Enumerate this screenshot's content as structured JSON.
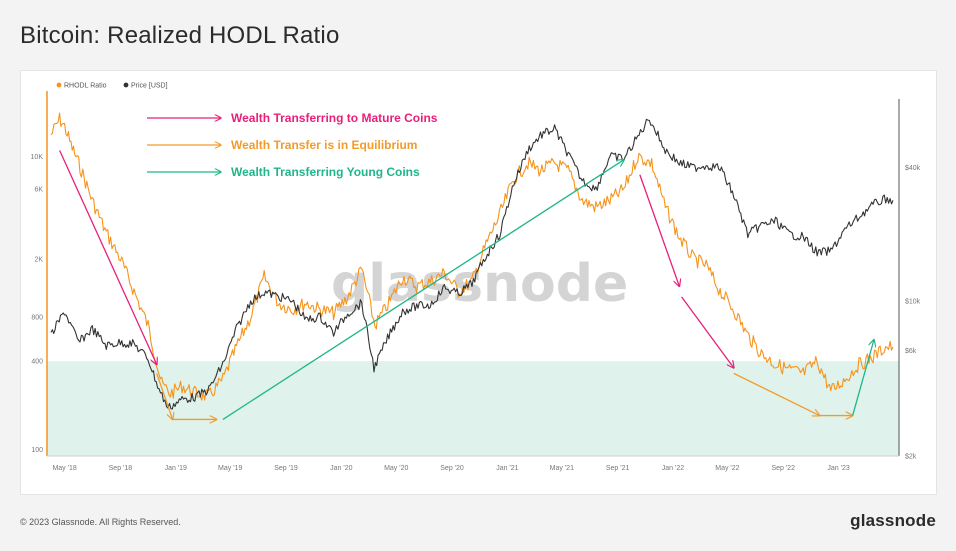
{
  "page": {
    "title": "Bitcoin: Realized HODL Ratio",
    "copyright": "© 2023 Glassnode. All Rights Reserved.",
    "brand": "glassnode",
    "watermark": "glassnode"
  },
  "chart_data": {
    "type": "line",
    "title": "",
    "xlabel": "",
    "ylabel_left": "",
    "ylabel_right": "",
    "x_ticks": [
      "May '18",
      "Sep '18",
      "Jan '19",
      "May '19",
      "Sep '19",
      "Jan '20",
      "May '20",
      "Sep '20",
      "Jan '21",
      "May '21",
      "Sep '21",
      "Jan '22",
      "May '22",
      "Sep '22",
      "Jan '23"
    ],
    "y_left_ticks": [
      "100",
      "400",
      "800",
      "2K",
      "6K",
      "10K"
    ],
    "y_left_scale": "log",
    "y_right_ticks": [
      "$2k",
      "$6k",
      "$10k",
      "$40k"
    ],
    "y_right_scale": "log",
    "legend": {
      "position": "top-left",
      "entries": [
        {
          "label": "RHODL Ratio",
          "color": "#f7931a"
        },
        {
          "label": "Price [USD]",
          "color": "#333333"
        }
      ]
    },
    "grid": false,
    "shaded_band": {
      "axis": "left",
      "from": 100,
      "to": 400,
      "color": "#dff3ec"
    },
    "series": [
      {
        "name": "RHODL Ratio",
        "color": "#f7931a",
        "axis": "left",
        "points": [
          [
            "2018-04-01",
            14000
          ],
          [
            "2018-04-20",
            18000
          ],
          [
            "2018-05-01",
            16000
          ],
          [
            "2018-05-15",
            12000
          ],
          [
            "2018-06-01",
            9000
          ],
          [
            "2018-07-01",
            5000
          ],
          [
            "2018-08-01",
            3000
          ],
          [
            "2018-09-01",
            2000
          ],
          [
            "2018-10-01",
            1200
          ],
          [
            "2018-11-01",
            700
          ],
          [
            "2018-12-01",
            280
          ],
          [
            "2018-12-20",
            240
          ],
          [
            "2019-01-15",
            270
          ],
          [
            "2019-02-15",
            240
          ],
          [
            "2019-03-15",
            230
          ],
          [
            "2019-04-15",
            300
          ],
          [
            "2019-05-15",
            500
          ],
          [
            "2019-06-15",
            800
          ],
          [
            "2019-07-15",
            1500
          ],
          [
            "2019-08-15",
            1000
          ],
          [
            "2019-09-15",
            900
          ],
          [
            "2019-10-15",
            1000
          ],
          [
            "2019-11-15",
            900
          ],
          [
            "2019-12-15",
            850
          ],
          [
            "2020-01-15",
            1100
          ],
          [
            "2020-02-15",
            1700
          ],
          [
            "2020-03-15",
            700
          ],
          [
            "2020-04-15",
            1000
          ],
          [
            "2020-05-15",
            1500
          ],
          [
            "2020-06-15",
            1300
          ],
          [
            "2020-07-15",
            1400
          ],
          [
            "2020-08-15",
            1600
          ],
          [
            "2020-09-15",
            1200
          ],
          [
            "2020-10-15",
            1400
          ],
          [
            "2020-11-15",
            2500
          ],
          [
            "2020-12-15",
            4000
          ],
          [
            "2021-01-15",
            7000
          ],
          [
            "2021-02-15",
            9000
          ],
          [
            "2021-03-15",
            8000
          ],
          [
            "2021-04-15",
            9000
          ],
          [
            "2021-05-15",
            8000
          ],
          [
            "2021-06-15",
            5000
          ],
          [
            "2021-07-15",
            4500
          ],
          [
            "2021-08-15",
            5000
          ],
          [
            "2021-09-15",
            6000
          ],
          [
            "2021-10-15",
            10000
          ],
          [
            "2021-11-15",
            9000
          ],
          [
            "2021-12-15",
            4500
          ],
          [
            "2022-01-15",
            2800
          ],
          [
            "2022-02-15",
            2000
          ],
          [
            "2022-03-15",
            1800
          ],
          [
            "2022-04-15",
            1200
          ],
          [
            "2022-05-15",
            900
          ],
          [
            "2022-06-15",
            600
          ],
          [
            "2022-07-15",
            450
          ],
          [
            "2022-08-15",
            380
          ],
          [
            "2022-09-15",
            350
          ],
          [
            "2022-10-15",
            330
          ],
          [
            "2022-11-15",
            400
          ],
          [
            "2022-12-15",
            250
          ],
          [
            "2023-01-15",
            300
          ],
          [
            "2023-02-15",
            380
          ],
          [
            "2023-03-15",
            420
          ],
          [
            "2023-04-15",
            500
          ],
          [
            "2023-05-01",
            500
          ]
        ]
      },
      {
        "name": "Price [USD]",
        "color": "#333333",
        "axis": "right",
        "points": [
          [
            "2018-04-01",
            7000
          ],
          [
            "2018-05-01",
            9000
          ],
          [
            "2018-06-01",
            6500
          ],
          [
            "2018-07-01",
            7500
          ],
          [
            "2018-08-01",
            6300
          ],
          [
            "2018-09-01",
            6500
          ],
          [
            "2018-10-01",
            6400
          ],
          [
            "2018-11-01",
            5500
          ],
          [
            "2018-11-25",
            4000
          ],
          [
            "2018-12-15",
            3300
          ],
          [
            "2019-01-15",
            3600
          ],
          [
            "2019-02-15",
            3700
          ],
          [
            "2019-03-15",
            4000
          ],
          [
            "2019-04-15",
            5200
          ],
          [
            "2019-05-15",
            7500
          ],
          [
            "2019-06-15",
            10000
          ],
          [
            "2019-07-15",
            11000
          ],
          [
            "2019-08-15",
            10500
          ],
          [
            "2019-09-15",
            10000
          ],
          [
            "2019-10-15",
            8200
          ],
          [
            "2019-11-15",
            8500
          ],
          [
            "2019-12-15",
            7200
          ],
          [
            "2020-01-15",
            8800
          ],
          [
            "2020-02-15",
            9800
          ],
          [
            "2020-03-13",
            5000
          ],
          [
            "2020-04-15",
            7000
          ],
          [
            "2020-05-15",
            9000
          ],
          [
            "2020-06-15",
            9500
          ],
          [
            "2020-07-15",
            9600
          ],
          [
            "2020-08-15",
            11500
          ],
          [
            "2020-09-15",
            10800
          ],
          [
            "2020-10-15",
            12000
          ],
          [
            "2020-11-15",
            16000
          ],
          [
            "2020-12-15",
            20000
          ],
          [
            "2021-01-15",
            34000
          ],
          [
            "2021-02-15",
            48000
          ],
          [
            "2021-03-15",
            56000
          ],
          [
            "2021-04-15",
            60000
          ],
          [
            "2021-05-15",
            46000
          ],
          [
            "2021-06-15",
            35000
          ],
          [
            "2021-07-15",
            32000
          ],
          [
            "2021-08-15",
            45000
          ],
          [
            "2021-09-15",
            44000
          ],
          [
            "2021-10-15",
            55000
          ],
          [
            "2021-11-10",
            67000
          ],
          [
            "2021-12-15",
            48000
          ],
          [
            "2022-01-15",
            42000
          ],
          [
            "2022-02-15",
            40000
          ],
          [
            "2022-03-15",
            41000
          ],
          [
            "2022-04-15",
            40000
          ],
          [
            "2022-05-15",
            30000
          ],
          [
            "2022-06-15",
            20000
          ],
          [
            "2022-07-15",
            22000
          ],
          [
            "2022-08-15",
            23000
          ],
          [
            "2022-09-15",
            20000
          ],
          [
            "2022-10-15",
            19500
          ],
          [
            "2022-11-15",
            16500
          ],
          [
            "2022-12-15",
            16800
          ],
          [
            "2023-01-15",
            21000
          ],
          [
            "2023-02-15",
            24000
          ],
          [
            "2023-03-15",
            27000
          ],
          [
            "2023-04-15",
            29000
          ],
          [
            "2023-05-01",
            28500
          ]
        ]
      }
    ],
    "annotations": [
      {
        "text": "Wealth Transferring to Mature Coins",
        "color": "#e8207a",
        "kind": "legend"
      },
      {
        "text": "Wealth Transfer is in Equilibrium",
        "color": "#f39b2a",
        "kind": "legend"
      },
      {
        "text": "Wealth Transferring Young Coins",
        "color": "#1fb68a",
        "kind": "legend"
      }
    ],
    "trend_arrows": [
      {
        "color": "#e8207a",
        "from": [
          "2018-04-20",
          11000
        ],
        "to": [
          "2018-11-20",
          380
        ],
        "axis": "left"
      },
      {
        "color": "#f39b2a",
        "from": [
          "2018-11-20",
          330
        ],
        "to": [
          "2018-12-25",
          160
        ],
        "axis": "left"
      },
      {
        "color": "#f39b2a",
        "from": [
          "2018-12-25",
          160
        ],
        "to": [
          "2019-04-01",
          160
        ],
        "axis": "left"
      },
      {
        "color": "#1fb68a",
        "from": [
          "2019-04-15",
          160
        ],
        "to": [
          "2021-09-15",
          9500
        ],
        "axis": "left"
      },
      {
        "color": "#e8207a",
        "from": [
          "2021-10-20",
          7500
        ],
        "to": [
          "2022-01-15",
          1300
        ],
        "axis": "left"
      },
      {
        "color": "#e8207a",
        "from": [
          "2022-01-20",
          1100
        ],
        "to": [
          "2022-05-15",
          360
        ],
        "axis": "left"
      },
      {
        "color": "#f39b2a",
        "from": [
          "2022-05-15",
          330
        ],
        "to": [
          "2022-11-20",
          170
        ],
        "axis": "left"
      },
      {
        "color": "#f39b2a",
        "from": [
          "2022-11-20",
          170
        ],
        "to": [
          "2023-02-01",
          170
        ],
        "axis": "left"
      },
      {
        "color": "#1fb68a",
        "from": [
          "2023-02-01",
          170
        ],
        "to": [
          "2023-03-20",
          560
        ],
        "axis": "left"
      }
    ]
  }
}
